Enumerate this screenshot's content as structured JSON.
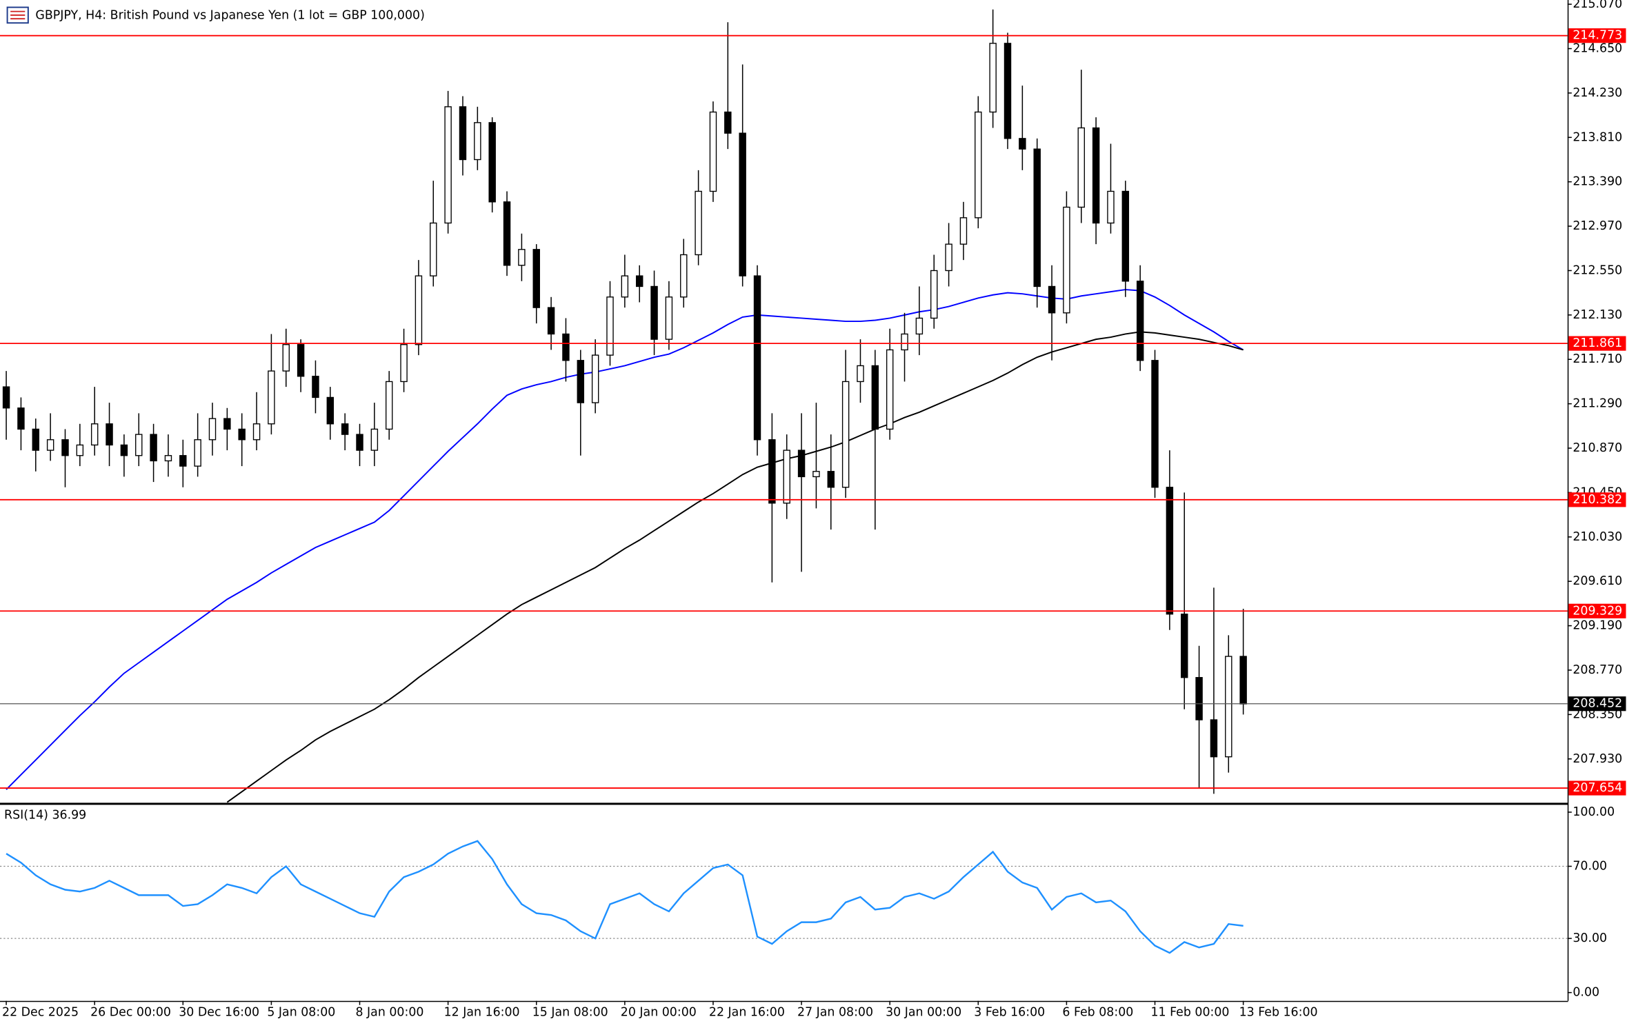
{
  "chart_data": [
    {
      "type": "candlestick",
      "title": "GBPJPY, H4:  British Pound vs Japanese Yen (1 lot = GBP 100,000)",
      "categories": [
        "22 Dec 2025",
        null,
        null,
        null,
        null,
        null,
        "26 Dec 00:00",
        null,
        null,
        null,
        null,
        null,
        "30 Dec 16:00",
        null,
        null,
        null,
        null,
        null,
        "5 Jan 08:00",
        null,
        null,
        null,
        null,
        null,
        "8 Jan 00:00",
        null,
        null,
        null,
        null,
        null,
        "12 Jan 16:00",
        null,
        null,
        null,
        null,
        null,
        "15 Jan 08:00",
        null,
        null,
        null,
        null,
        null,
        "20 Jan 00:00",
        null,
        null,
        null,
        null,
        null,
        "22 Jan 16:00",
        null,
        null,
        null,
        null,
        null,
        "27 Jan 08:00",
        null,
        null,
        null,
        null,
        null,
        "30 Jan 00:00",
        null,
        null,
        null,
        null,
        null,
        "3 Feb 16:00",
        null,
        null,
        null,
        null,
        null,
        "6 Feb 08:00",
        null,
        null,
        null,
        null,
        null,
        "11 Feb 00:00",
        null,
        null,
        null,
        null,
        null,
        "13 Feb 16:00"
      ],
      "ohlc": [
        [
          211.45,
          211.6,
          210.95,
          211.25
        ],
        [
          211.25,
          211.35,
          210.85,
          211.05
        ],
        [
          211.05,
          211.15,
          210.65,
          210.85
        ],
        [
          210.85,
          211.2,
          210.75,
          210.95
        ],
        [
          210.95,
          211.05,
          210.5,
          210.8
        ],
        [
          210.8,
          211.1,
          210.7,
          210.9
        ],
        [
          210.9,
          211.45,
          210.8,
          211.1
        ],
        [
          211.1,
          211.3,
          210.7,
          210.9
        ],
        [
          210.9,
          211.0,
          210.6,
          210.8
        ],
        [
          210.8,
          211.2,
          210.7,
          211.0
        ],
        [
          211.0,
          211.1,
          210.55,
          210.75
        ],
        [
          210.75,
          211.0,
          210.6,
          210.8
        ],
        [
          210.8,
          210.95,
          210.5,
          210.7
        ],
        [
          210.7,
          211.2,
          210.6,
          210.95
        ],
        [
          210.95,
          211.3,
          210.8,
          211.15
        ],
        [
          211.15,
          211.25,
          210.85,
          211.05
        ],
        [
          211.05,
          211.2,
          210.7,
          210.95
        ],
        [
          210.95,
          211.4,
          210.85,
          211.1
        ],
        [
          211.1,
          211.95,
          211.0,
          211.6
        ],
        [
          211.6,
          212.0,
          211.45,
          211.85
        ],
        [
          211.85,
          211.9,
          211.4,
          211.55
        ],
        [
          211.55,
          211.7,
          211.2,
          211.35
        ],
        [
          211.35,
          211.45,
          210.95,
          211.1
        ],
        [
          211.1,
          211.2,
          210.85,
          211.0
        ],
        [
          211.0,
          211.1,
          210.7,
          210.85
        ],
        [
          210.85,
          211.3,
          210.7,
          211.05
        ],
        [
          211.05,
          211.6,
          210.95,
          211.5
        ],
        [
          211.5,
          212.0,
          211.4,
          211.85
        ],
        [
          211.85,
          212.65,
          211.75,
          212.5
        ],
        [
          212.5,
          213.4,
          212.4,
          213.0
        ],
        [
          213.0,
          214.25,
          212.9,
          214.1
        ],
        [
          214.1,
          214.2,
          213.45,
          213.6
        ],
        [
          213.6,
          214.1,
          213.5,
          213.95
        ],
        [
          213.95,
          214.0,
          213.1,
          213.2
        ],
        [
          213.2,
          213.3,
          212.5,
          212.6
        ],
        [
          212.6,
          212.9,
          212.45,
          212.75
        ],
        [
          212.75,
          212.8,
          212.05,
          212.2
        ],
        [
          212.2,
          212.3,
          211.8,
          211.95
        ],
        [
          211.95,
          212.1,
          211.5,
          211.7
        ],
        [
          211.7,
          211.8,
          210.8,
          211.3
        ],
        [
          211.3,
          211.9,
          211.2,
          211.75
        ],
        [
          211.75,
          212.45,
          211.65,
          212.3
        ],
        [
          212.3,
          212.7,
          212.2,
          212.5
        ],
        [
          212.5,
          212.6,
          212.25,
          212.4
        ],
        [
          212.4,
          212.55,
          211.75,
          211.9
        ],
        [
          211.9,
          212.45,
          211.8,
          212.3
        ],
        [
          212.3,
          212.85,
          212.2,
          212.7
        ],
        [
          212.7,
          213.5,
          212.6,
          213.3
        ],
        [
          213.3,
          214.15,
          213.2,
          214.05
        ],
        [
          214.05,
          214.9,
          213.7,
          213.85
        ],
        [
          213.85,
          214.5,
          212.4,
          212.5
        ],
        [
          212.5,
          212.6,
          210.8,
          210.95
        ],
        [
          210.95,
          211.2,
          209.6,
          210.35
        ],
        [
          210.35,
          211.0,
          210.2,
          210.85
        ],
        [
          210.85,
          211.2,
          209.7,
          210.6
        ],
        [
          210.6,
          211.3,
          210.3,
          210.65
        ],
        [
          210.65,
          211.0,
          210.1,
          210.5
        ],
        [
          210.5,
          211.8,
          210.4,
          211.5
        ],
        [
          211.5,
          211.9,
          211.3,
          211.65
        ],
        [
          211.65,
          211.8,
          210.1,
          211.05
        ],
        [
          211.05,
          212.0,
          210.95,
          211.8
        ],
        [
          211.8,
          212.15,
          211.5,
          211.95
        ],
        [
          211.95,
          212.4,
          211.75,
          212.1
        ],
        [
          212.1,
          212.7,
          212.0,
          212.55
        ],
        [
          212.55,
          213.0,
          212.4,
          212.8
        ],
        [
          212.8,
          213.2,
          212.65,
          213.05
        ],
        [
          213.05,
          214.2,
          212.95,
          214.05
        ],
        [
          214.05,
          215.02,
          213.9,
          214.7
        ],
        [
          214.7,
          214.8,
          213.7,
          213.8
        ],
        [
          213.8,
          214.3,
          213.5,
          213.7
        ],
        [
          213.7,
          213.8,
          212.2,
          212.4
        ],
        [
          212.4,
          212.6,
          211.7,
          212.15
        ],
        [
          212.15,
          213.3,
          212.05,
          213.15
        ],
        [
          213.15,
          214.45,
          213.0,
          213.9
        ],
        [
          213.9,
          214.0,
          212.8,
          213.0
        ],
        [
          213.0,
          213.75,
          212.9,
          213.3
        ],
        [
          213.3,
          213.4,
          212.3,
          212.45
        ],
        [
          212.45,
          212.6,
          211.6,
          211.7
        ],
        [
          211.7,
          211.8,
          210.4,
          210.5
        ],
        [
          210.5,
          210.85,
          209.15,
          209.3
        ],
        [
          209.3,
          210.45,
          208.4,
          208.7
        ],
        [
          208.7,
          209.0,
          207.65,
          208.3
        ],
        [
          208.3,
          209.55,
          207.6,
          207.95
        ],
        [
          207.95,
          209.1,
          207.8,
          208.9
        ],
        [
          208.9,
          209.35,
          208.35,
          208.45
        ]
      ],
      "up_color": "#ffffff",
      "down_color": "#000000",
      "lines": [
        {
          "color": "#0000ff",
          "values": [
            207.64,
            207.78,
            207.92,
            208.06,
            208.2,
            208.34,
            208.47,
            208.61,
            208.74,
            208.84,
            208.94,
            209.04,
            209.14,
            209.24,
            209.34,
            209.44,
            209.52,
            209.6,
            209.69,
            209.77,
            209.85,
            209.93,
            209.99,
            210.05,
            210.11,
            210.17,
            210.28,
            210.42,
            210.56,
            210.7,
            210.84,
            210.97,
            211.1,
            211.24,
            211.37,
            211.43,
            211.47,
            211.5,
            211.54,
            211.57,
            211.59,
            211.62,
            211.65,
            211.69,
            211.73,
            211.76,
            211.82,
            211.89,
            211.96,
            212.04,
            212.11,
            212.13,
            212.12,
            212.11,
            212.1,
            212.09,
            212.08,
            212.07,
            212.07,
            212.08,
            212.1,
            212.13,
            212.16,
            212.18,
            212.21,
            212.25,
            212.29,
            212.32,
            212.34,
            212.33,
            212.31,
            212.29,
            212.28,
            212.31,
            212.33,
            212.35,
            212.37,
            212.36,
            212.3,
            212.22,
            212.13,
            212.05,
            211.97,
            211.88,
            211.8
          ]
        },
        {
          "color": "#000000",
          "values": [
            null,
            null,
            null,
            null,
            null,
            null,
            null,
            null,
            null,
            null,
            null,
            null,
            null,
            null,
            null,
            207.52,
            207.62,
            207.72,
            207.82,
            207.92,
            208.01,
            208.11,
            208.19,
            208.26,
            208.33,
            208.4,
            208.49,
            208.59,
            208.7,
            208.8,
            208.9,
            209.0,
            209.1,
            209.2,
            209.3,
            209.39,
            209.46,
            209.53,
            209.6,
            209.67,
            209.74,
            209.83,
            209.92,
            210.0,
            210.09,
            210.18,
            210.27,
            210.36,
            210.44,
            210.53,
            210.62,
            210.69,
            210.73,
            210.77,
            210.8,
            210.84,
            210.88,
            210.93,
            210.99,
            211.05,
            211.1,
            211.16,
            211.21,
            211.27,
            211.33,
            211.39,
            211.45,
            211.51,
            211.58,
            211.66,
            211.73,
            211.78,
            211.82,
            211.86,
            211.9,
            211.92,
            211.95,
            211.97,
            211.96,
            211.94,
            211.92,
            211.9,
            211.87,
            211.84,
            211.8
          ]
        }
      ],
      "levels": [
        214.773,
        211.861,
        210.382,
        209.329,
        207.654
      ],
      "level_color": "#ff0000",
      "current_price": 208.452,
      "ylim": [
        207.515,
        215.11
      ],
      "yticks": [
        {
          "value": 215.07,
          "label": "215.070"
        },
        {
          "value": 214.65,
          "label": "214.650"
        },
        {
          "value": 214.23,
          "label": "214.230"
        },
        {
          "value": 213.81,
          "label": "213.810"
        },
        {
          "value": 213.39,
          "label": "213.390"
        },
        {
          "value": 212.97,
          "label": "212.970"
        },
        {
          "value": 212.55,
          "label": "212.550"
        },
        {
          "value": 212.13,
          "label": "212.130"
        },
        {
          "value": 211.71,
          "label": "211.710"
        },
        {
          "value": 211.29,
          "label": "211.290"
        },
        {
          "value": 210.87,
          "label": "210.870"
        },
        {
          "value": 210.45,
          "label": "210.450"
        },
        {
          "value": 210.03,
          "label": "210.030"
        },
        {
          "value": 209.61,
          "label": "209.610"
        },
        {
          "value": 209.19,
          "label": "209.190"
        },
        {
          "value": 208.77,
          "label": "208.770"
        },
        {
          "value": 208.35,
          "label": "208.350"
        },
        {
          "value": 207.93,
          "label": "207.930"
        }
      ]
    },
    {
      "type": "line",
      "title": "RSI(14) 36.99",
      "color": "#1e90ff",
      "values": [
        77,
        72,
        65,
        60,
        57,
        56,
        58,
        62,
        58,
        54,
        54,
        54,
        48,
        49,
        54,
        60,
        58,
        55,
        64,
        70,
        60,
        56,
        52,
        48,
        44,
        42,
        56,
        64,
        67,
        71,
        77,
        81,
        84,
        74,
        60,
        49,
        44,
        43,
        40,
        34,
        30,
        49,
        52,
        55,
        49,
        45,
        55,
        62,
        69,
        71,
        65,
        31,
        27,
        34,
        39,
        39,
        41,
        50,
        53,
        46,
        47,
        53,
        55,
        52,
        56,
        64,
        71,
        78,
        67,
        61,
        58,
        46,
        53,
        55,
        50,
        51,
        45,
        34,
        26,
        22,
        28,
        25,
        27,
        38,
        36.99
      ],
      "levels": [
        70,
        30
      ],
      "ylim": [
        -4.6,
        104.05
      ],
      "yticks": [
        {
          "value": 100,
          "label": "100.00"
        },
        {
          "value": 70,
          "label": "70.00"
        },
        {
          "value": 30,
          "label": "30.00"
        },
        {
          "value": 0,
          "label": "0.00"
        }
      ]
    }
  ]
}
